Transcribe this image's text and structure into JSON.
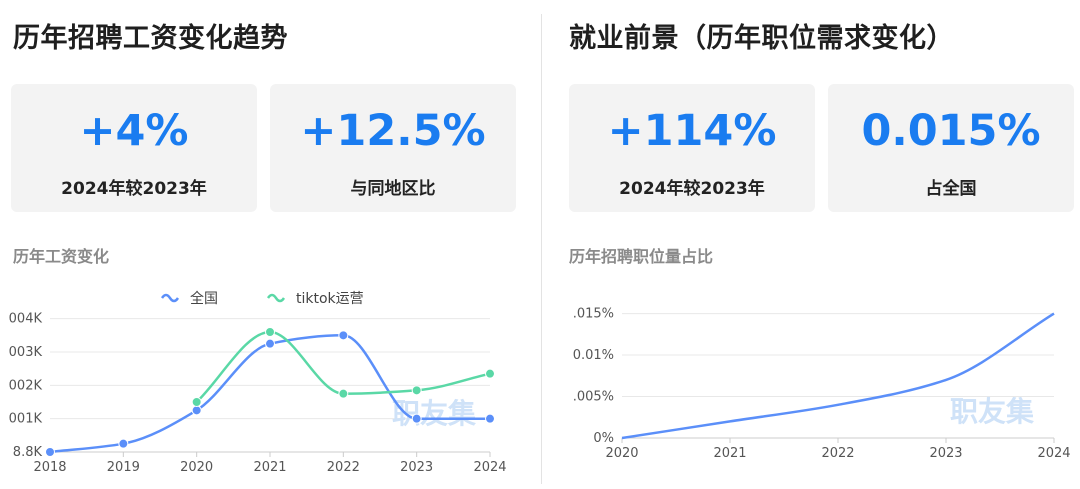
{
  "left": {
    "title": "历年招聘工资变化趋势",
    "cards": [
      {
        "value": "+4%",
        "label": "2024年较2023年"
      },
      {
        "value": "+12.5%",
        "label": "与同地区比"
      }
    ],
    "subtitle": "历年工资变化"
  },
  "right": {
    "title": "就业前景（历年职位需求变化）",
    "cards": [
      {
        "value": "+114%",
        "label": "2024年较2023年"
      },
      {
        "value": "0.015%",
        "label": "占全国"
      }
    ],
    "subtitle": "历年招聘职位量占比"
  },
  "watermark": "职友集",
  "colors": {
    "accent": "#1a7cf0",
    "series_blue": "#5b8ff9",
    "series_green": "#5ad8a6",
    "card_bg": "#f3f3f3"
  },
  "chart_data": [
    {
      "type": "line",
      "title": "历年工资变化",
      "x": [
        "2018",
        "2019",
        "2020",
        "2021",
        "2022",
        "2023",
        "2024"
      ],
      "ytick_labels": [
        "8.8K",
        "001K",
        "002K",
        "003K",
        "004K"
      ],
      "yticks": [
        0,
        1,
        2,
        3,
        4
      ],
      "ylim": [
        0,
        4.5
      ],
      "legend_position": "top-center",
      "series": [
        {
          "name": "全国",
          "color": "#5b8ff9",
          "values": [
            0,
            0.25,
            1.25,
            3.25,
            3.5,
            1.0,
            1.0
          ]
        },
        {
          "name": "tiktok运营",
          "color": "#5ad8a6",
          "values": [
            null,
            null,
            1.5,
            3.6,
            1.75,
            1.85,
            2.35
          ]
        }
      ],
      "grid": true,
      "smooth": true
    },
    {
      "type": "line",
      "title": "历年招聘职位量占比",
      "x": [
        "2020",
        "2021",
        "2022",
        "2023",
        "2024"
      ],
      "ytick_labels": [
        "0%",
        ".005%",
        "0.01%",
        ".015%"
      ],
      "yticks": [
        0,
        0.005,
        0.01,
        0.015
      ],
      "ylim": [
        0,
        0.017
      ],
      "series": [
        {
          "color": "#5b8ff9",
          "values": [
            0,
            0.002,
            0.004,
            0.007,
            0.015
          ]
        }
      ],
      "grid": true,
      "smooth": true
    }
  ]
}
